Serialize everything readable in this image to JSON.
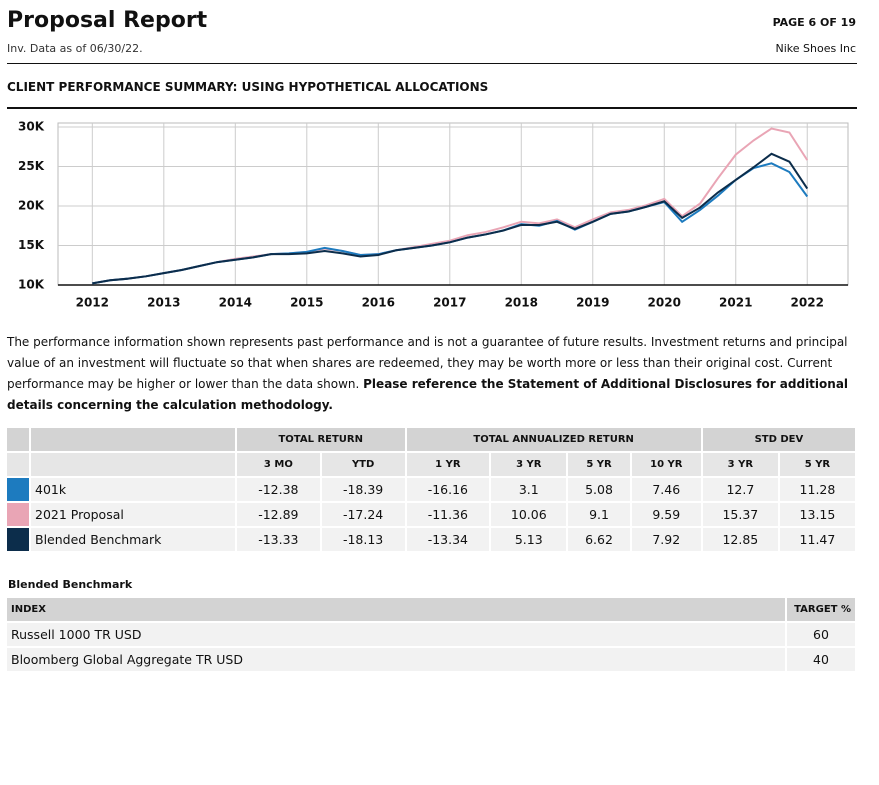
{
  "header": {
    "title": "Proposal Report",
    "subtitle": "Inv. Data as of 06/30/22.",
    "page": "PAGE 6 OF 19",
    "client": "Nike Shoes Inc"
  },
  "section_title": "CLIENT PERFORMANCE SUMMARY: USING HYPOTHETICAL ALLOCATIONS",
  "chart_data": {
    "type": "line",
    "x": [
      2012,
      2012.25,
      2012.5,
      2012.75,
      2013,
      2013.25,
      2013.5,
      2013.75,
      2014,
      2014.25,
      2014.5,
      2014.75,
      2015,
      2015.25,
      2015.5,
      2015.75,
      2016,
      2016.25,
      2016.5,
      2016.75,
      2017,
      2017.25,
      2017.5,
      2017.75,
      2018,
      2018.25,
      2018.5,
      2018.75,
      2019,
      2019.25,
      2019.5,
      2019.75,
      2020,
      2020.25,
      2020.5,
      2020.75,
      2021,
      2021.25,
      2021.5,
      2021.75,
      2022
    ],
    "series": [
      {
        "name": "401k",
        "color": "#1d7bbf",
        "values": [
          10200,
          10600,
          10800,
          11100,
          11500,
          11900,
          12400,
          12900,
          13200,
          13500,
          13900,
          14000,
          14200,
          14700,
          14300,
          13800,
          13900,
          14400,
          14700,
          15000,
          15400,
          16000,
          16400,
          16900,
          17700,
          17500,
          18100,
          17000,
          18000,
          19000,
          19300,
          19900,
          20500,
          18000,
          19500,
          21300,
          23300,
          24800,
          25400,
          24300,
          21200
        ]
      },
      {
        "name": "2021 Proposal",
        "color": "#e9a5b5",
        "values": [
          10200,
          10600,
          10800,
          11100,
          11500,
          11900,
          12400,
          12900,
          13300,
          13600,
          13900,
          14000,
          14200,
          14600,
          14300,
          13800,
          13900,
          14400,
          14800,
          15200,
          15600,
          16300,
          16700,
          17300,
          18000,
          17800,
          18300,
          17300,
          18300,
          19200,
          19500,
          20100,
          20900,
          18700,
          20300,
          23500,
          26500,
          28300,
          29800,
          29300,
          25800
        ]
      },
      {
        "name": "Blended Benchmark",
        "color": "#0c2d4b",
        "values": [
          10200,
          10600,
          10800,
          11100,
          11500,
          11900,
          12400,
          12900,
          13200,
          13500,
          13900,
          13900,
          14000,
          14300,
          14000,
          13600,
          13800,
          14400,
          14700,
          15000,
          15400,
          16000,
          16400,
          16900,
          17600,
          17600,
          18000,
          17100,
          18000,
          19000,
          19300,
          19900,
          20600,
          18500,
          19800,
          21700,
          23300,
          24900,
          26600,
          25600,
          22200
        ]
      }
    ],
    "xlim": [
      2011.52,
      2022.57
    ],
    "xticks": [
      2012,
      2013,
      2014,
      2015,
      2016,
      2017,
      2018,
      2019,
      2020,
      2021,
      2022
    ],
    "ylim": [
      10000,
      30500
    ],
    "yticks": [
      {
        "value": 10000,
        "label": "10K"
      },
      {
        "value": 15000,
        "label": "15K"
      },
      {
        "value": 20000,
        "label": "20K"
      },
      {
        "value": 25000,
        "label": "25K"
      },
      {
        "value": 30000,
        "label": "30K"
      }
    ],
    "grid": true
  },
  "disclaimer": {
    "text": "The performance information shown represents past performance and is not a guarantee of future results. Investment returns and principal value of an investment will fluctuate so that when shares are redeemed, they may be worth more or less than their original cost. Current performance may be higher or lower than the data shown.",
    "bold": "Please reference the Statement of Additional Disclosures for additional details concerning the calculation methodology."
  },
  "performance": {
    "groups": [
      "TOTAL RETURN",
      "TOTAL ANNUALIZED RETURN",
      "STD DEV"
    ],
    "columns": [
      "3 MO",
      "YTD",
      "1 YR",
      "3 YR",
      "5 YR",
      "10 YR",
      "3 YR",
      "5 YR"
    ],
    "rows": [
      [
        -12.38,
        -18.39,
        -16.16,
        3.1,
        5.08,
        7.46,
        12.7,
        11.28
      ],
      [
        -12.89,
        -17.24,
        -11.36,
        10.06,
        9.1,
        9.59,
        15.37,
        13.15
      ],
      [
        -13.33,
        -18.13,
        -13.34,
        5.13,
        6.62,
        7.92,
        12.85,
        11.47
      ]
    ]
  },
  "benchmark": {
    "title": "Blended Benchmark",
    "columns": [
      "INDEX",
      "TARGET %"
    ],
    "rows": [
      [
        "Russell 1000 TR USD",
        60
      ],
      [
        "Bloomberg Global Aggregate TR USD",
        40
      ]
    ]
  }
}
